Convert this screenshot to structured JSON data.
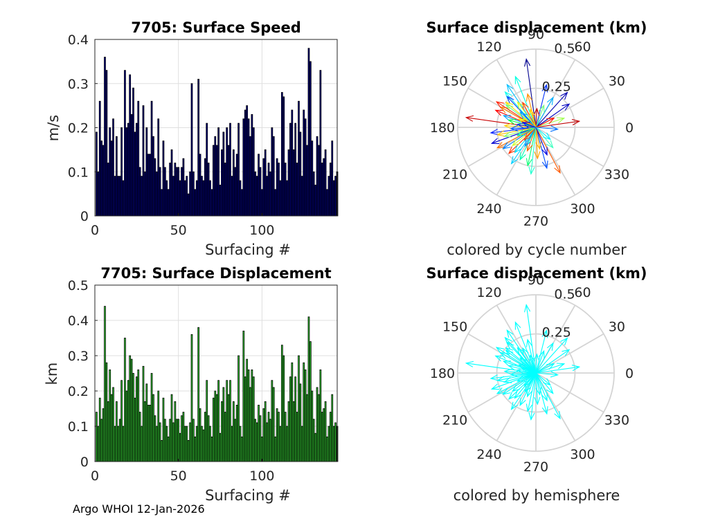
{
  "footer": "Argo WHOI 12-Jan-2026",
  "chart_data": [
    {
      "type": "bar",
      "title": "7705: Surface Speed",
      "xlabel": "Surfacing #",
      "ylabel": "m/s",
      "xlim": [
        0,
        145
      ],
      "ylim": [
        0,
        0.4
      ],
      "xticks": [
        "0",
        "50",
        "100"
      ],
      "yticks": [
        "0",
        "0.1",
        "0.2",
        "0.3",
        "0.4"
      ],
      "bar_color": "#000080",
      "edge_color": "#000000",
      "values": [
        0.19,
        0.1,
        0.26,
        0.17,
        0.16,
        0.36,
        0.33,
        0.12,
        0.2,
        0.17,
        0.22,
        0.09,
        0.18,
        0.09,
        0.09,
        0.2,
        0.08,
        0.33,
        0.2,
        0.21,
        0.32,
        0.23,
        0.29,
        0.19,
        0.21,
        0.26,
        0.11,
        0.09,
        0.25,
        0.1,
        0.2,
        0.14,
        0.14,
        0.26,
        0.18,
        0.13,
        0.1,
        0.22,
        0.11,
        0.06,
        0.17,
        0.11,
        0.08,
        0.06,
        0.12,
        0.15,
        0.09,
        0.12,
        0.11,
        0.11,
        0.08,
        0.11,
        0.13,
        0.08,
        0.09,
        0.05,
        0.1,
        0.3,
        0.1,
        0.06,
        0.08,
        0.31,
        0.14,
        0.09,
        0.08,
        0.13,
        0.21,
        0.12,
        0.08,
        0.06,
        0.16,
        0.18,
        0.16,
        0.2,
        0.07,
        0.15,
        0.19,
        0.12,
        0.2,
        0.16,
        0.21,
        0.09,
        0.15,
        0.11,
        0.14,
        0.21,
        0.08,
        0.06,
        0.22,
        0.24,
        0.25,
        0.22,
        0.18,
        0.23,
        0.2,
        0.1,
        0.09,
        0.14,
        0.11,
        0.06,
        0.13,
        0.15,
        0.09,
        0.12,
        0.1,
        0.2,
        0.18,
        0.06,
        0.13,
        0.12,
        0.08,
        0.28,
        0.27,
        0.12,
        0.08,
        0.15,
        0.21,
        0.24,
        0.15,
        0.21,
        0.12,
        0.26,
        0.19,
        0.09,
        0.24,
        0.22,
        0.16,
        0.38,
        0.35,
        0.17,
        0.1,
        0.07,
        0.18,
        0.16,
        0.33,
        0.12,
        0.13,
        0.15,
        0.06,
        0.09,
        0.12,
        0.17,
        0.08,
        0.09,
        0.1
      ]
    },
    {
      "type": "polar",
      "title": "Surface displacement (km)",
      "subtitle": "colored by cycle number",
      "r_max": 0.5,
      "r_ticks": [
        "0.25",
        "0.5"
      ],
      "angle_ticks": [
        "0",
        "30",
        "60",
        "90",
        "120",
        "150",
        "180",
        "210",
        "240",
        "270",
        "300",
        "330"
      ],
      "colormap": "jet",
      "arrows": [
        {
          "angle": 98,
          "r": 0.44,
          "color": "#00008f"
        },
        {
          "angle": 172,
          "r": 0.45,
          "color": "#c80000"
        },
        {
          "angle": 8,
          "r": 0.28,
          "color": "#c00000"
        },
        {
          "angle": 298,
          "r": 0.33,
          "color": "#ff5a00"
        },
        {
          "angle": 131,
          "r": 0.3,
          "color": "#10ffee"
        },
        {
          "angle": 133,
          "r": 0.27,
          "color": "#0040ff"
        },
        {
          "angle": 124,
          "r": 0.33,
          "color": "#00c0ff"
        },
        {
          "angle": 140,
          "r": 0.25,
          "color": "#ffe000"
        },
        {
          "angle": 150,
          "r": 0.26,
          "color": "#ff8000"
        },
        {
          "angle": 143,
          "r": 0.24,
          "color": "#60ff90"
        },
        {
          "angle": 157,
          "r": 0.28,
          "color": "#ff0000"
        },
        {
          "angle": 160,
          "r": 0.22,
          "color": "#00a0ff"
        },
        {
          "angle": 187,
          "r": 0.29,
          "color": "#0020ff"
        },
        {
          "angle": 191,
          "r": 0.25,
          "color": "#ffc000"
        },
        {
          "angle": 200,
          "r": 0.3,
          "color": "#0000d0"
        },
        {
          "angle": 208,
          "r": 0.28,
          "color": "#ff7000"
        },
        {
          "angle": 213,
          "r": 0.25,
          "color": "#0080ff"
        },
        {
          "angle": 224,
          "r": 0.24,
          "color": "#ff3000"
        },
        {
          "angle": 230,
          "r": 0.21,
          "color": "#00e0ff"
        },
        {
          "angle": 244,
          "r": 0.23,
          "color": "#00ffb0"
        },
        {
          "angle": 258,
          "r": 0.25,
          "color": "#00ff70"
        },
        {
          "angle": 273,
          "r": 0.2,
          "color": "#ffa000"
        },
        {
          "angle": 285,
          "r": 0.27,
          "color": "#0050ff"
        },
        {
          "angle": 310,
          "r": 0.17,
          "color": "#40ffc0"
        },
        {
          "angle": 18,
          "r": 0.19,
          "color": "#a0ff50"
        },
        {
          "angle": 35,
          "r": 0.26,
          "color": "#0000c0"
        },
        {
          "angle": 48,
          "r": 0.3,
          "color": "#0000b0"
        },
        {
          "angle": 60,
          "r": 0.22,
          "color": "#00b0ff"
        },
        {
          "angle": 76,
          "r": 0.28,
          "color": "#0030ff"
        },
        {
          "angle": 104,
          "r": 0.22,
          "color": "#ff9000"
        },
        {
          "angle": 112,
          "r": 0.35,
          "color": "#00ffe0"
        },
        {
          "angle": 118,
          "r": 0.18,
          "color": "#ff4000"
        },
        {
          "angle": 126,
          "r": 0.2,
          "color": "#e0ff20"
        },
        {
          "angle": 147,
          "r": 0.3,
          "color": "#ff2000"
        },
        {
          "angle": 165,
          "r": 0.18,
          "color": "#00ff40"
        },
        {
          "angle": 177,
          "r": 0.2,
          "color": "#ffd000"
        },
        {
          "angle": 183,
          "r": 0.16,
          "color": "#0060ff"
        },
        {
          "angle": 196,
          "r": 0.21,
          "color": "#80ff70"
        },
        {
          "angle": 218,
          "r": 0.19,
          "color": "#d0ff30"
        },
        {
          "angle": 236,
          "r": 0.28,
          "color": "#00d0ff"
        },
        {
          "angle": 250,
          "r": 0.16,
          "color": "#ff6000"
        },
        {
          "angle": 264,
          "r": 0.3,
          "color": "#20ffd0"
        },
        {
          "angle": 280,
          "r": 0.14,
          "color": "#ffb000"
        },
        {
          "angle": 292,
          "r": 0.19,
          "color": "#0000e0"
        },
        {
          "angle": 320,
          "r": 0.12,
          "color": "#00f0ff"
        },
        {
          "angle": 355,
          "r": 0.14,
          "color": "#0070ff"
        },
        {
          "angle": 27,
          "r": 0.13,
          "color": "#ff1000"
        },
        {
          "angle": 70,
          "r": 0.15,
          "color": "#70ff80"
        },
        {
          "angle": 87,
          "r": 0.12,
          "color": "#c00000"
        },
        {
          "angle": 136,
          "r": 0.14,
          "color": "#00a8ff"
        },
        {
          "angle": 154,
          "r": 0.12,
          "color": "#f8ff00"
        },
        {
          "angle": 171,
          "r": 0.12,
          "color": "#0040e0"
        },
        {
          "angle": 204,
          "r": 0.13,
          "color": "#00ffa0"
        },
        {
          "angle": 228,
          "r": 0.11,
          "color": "#ff5000"
        },
        {
          "angle": 240,
          "r": 0.14,
          "color": "#0090ff"
        },
        {
          "angle": 108,
          "r": 0.12,
          "color": "#ffd800"
        },
        {
          "angle": 160,
          "r": 0.09,
          "color": "#0000ff"
        }
      ]
    },
    {
      "type": "bar",
      "title": "7705: Surface Displacement",
      "xlabel": "Surfacing #",
      "ylabel": "km",
      "xlim": [
        0,
        145
      ],
      "ylim": [
        0,
        0.5
      ],
      "xticks": [
        "0",
        "50",
        "100"
      ],
      "yticks": [
        "0",
        "0.1",
        "0.2",
        "0.3",
        "0.4",
        "0.5"
      ],
      "bar_color": "#33cc33",
      "edge_color": "#000000",
      "values": [
        0.14,
        0.1,
        0.18,
        0.12,
        0.15,
        0.44,
        0.28,
        0.17,
        0.26,
        0.19,
        0.21,
        0.1,
        0.17,
        0.1,
        0.12,
        0.23,
        0.1,
        0.35,
        0.2,
        0.23,
        0.3,
        0.29,
        0.25,
        0.18,
        0.24,
        0.26,
        0.14,
        0.1,
        0.27,
        0.17,
        0.22,
        0.16,
        0.16,
        0.25,
        0.19,
        0.13,
        0.1,
        0.2,
        0.11,
        0.06,
        0.18,
        0.12,
        0.1,
        0.07,
        0.12,
        0.19,
        0.11,
        0.17,
        0.12,
        0.12,
        0.08,
        0.13,
        0.14,
        0.1,
        0.1,
        0.06,
        0.11,
        0.36,
        0.12,
        0.07,
        0.1,
        0.38,
        0.15,
        0.1,
        0.09,
        0.14,
        0.23,
        0.13,
        0.1,
        0.07,
        0.18,
        0.2,
        0.19,
        0.23,
        0.08,
        0.17,
        0.21,
        0.14,
        0.23,
        0.19,
        0.23,
        0.1,
        0.17,
        0.12,
        0.16,
        0.3,
        0.1,
        0.07,
        0.37,
        0.24,
        0.29,
        0.26,
        0.21,
        0.26,
        0.24,
        0.12,
        0.11,
        0.16,
        0.13,
        0.07,
        0.15,
        0.17,
        0.11,
        0.14,
        0.12,
        0.23,
        0.21,
        0.07,
        0.15,
        0.14,
        0.1,
        0.33,
        0.3,
        0.14,
        0.1,
        0.17,
        0.24,
        0.28,
        0.17,
        0.24,
        0.14,
        0.3,
        0.22,
        0.1,
        0.28,
        0.26,
        0.19,
        0.41,
        0.34,
        0.2,
        0.12,
        0.08,
        0.21,
        0.19,
        0.26,
        0.14,
        0.15,
        0.17,
        0.07,
        0.1,
        0.14,
        0.19,
        0.1,
        0.11,
        0.1
      ]
    },
    {
      "type": "polar",
      "title": "Surface displacement (km)",
      "subtitle": "colored by hemisphere",
      "r_max": 0.5,
      "r_ticks": [
        "0.25",
        "0.5"
      ],
      "angle_ticks": [
        "0",
        "30",
        "60",
        "90",
        "120",
        "150",
        "180",
        "210",
        "240",
        "270",
        "300",
        "330"
      ],
      "arrow_color": "#00ffff",
      "arrows": [
        {
          "angle": 98,
          "r": 0.44
        },
        {
          "angle": 172,
          "r": 0.45
        },
        {
          "angle": 8,
          "r": 0.28
        },
        {
          "angle": 298,
          "r": 0.33
        },
        {
          "angle": 131,
          "r": 0.3
        },
        {
          "angle": 133,
          "r": 0.27
        },
        {
          "angle": 124,
          "r": 0.33
        },
        {
          "angle": 140,
          "r": 0.25
        },
        {
          "angle": 150,
          "r": 0.26
        },
        {
          "angle": 143,
          "r": 0.24
        },
        {
          "angle": 157,
          "r": 0.28
        },
        {
          "angle": 160,
          "r": 0.22
        },
        {
          "angle": 187,
          "r": 0.29
        },
        {
          "angle": 191,
          "r": 0.25
        },
        {
          "angle": 200,
          "r": 0.3
        },
        {
          "angle": 208,
          "r": 0.28
        },
        {
          "angle": 213,
          "r": 0.25
        },
        {
          "angle": 224,
          "r": 0.24
        },
        {
          "angle": 230,
          "r": 0.21
        },
        {
          "angle": 244,
          "r": 0.23
        },
        {
          "angle": 258,
          "r": 0.25
        },
        {
          "angle": 273,
          "r": 0.2
        },
        {
          "angle": 285,
          "r": 0.27
        },
        {
          "angle": 310,
          "r": 0.17
        },
        {
          "angle": 18,
          "r": 0.19
        },
        {
          "angle": 35,
          "r": 0.26
        },
        {
          "angle": 48,
          "r": 0.3
        },
        {
          "angle": 60,
          "r": 0.22
        },
        {
          "angle": 76,
          "r": 0.28
        },
        {
          "angle": 104,
          "r": 0.22
        },
        {
          "angle": 112,
          "r": 0.35
        },
        {
          "angle": 118,
          "r": 0.18
        },
        {
          "angle": 126,
          "r": 0.2
        },
        {
          "angle": 147,
          "r": 0.3
        },
        {
          "angle": 165,
          "r": 0.18
        },
        {
          "angle": 177,
          "r": 0.2
        },
        {
          "angle": 183,
          "r": 0.16
        },
        {
          "angle": 196,
          "r": 0.21
        },
        {
          "angle": 218,
          "r": 0.19
        },
        {
          "angle": 236,
          "r": 0.28
        },
        {
          "angle": 250,
          "r": 0.16
        },
        {
          "angle": 264,
          "r": 0.3
        },
        {
          "angle": 280,
          "r": 0.14
        },
        {
          "angle": 292,
          "r": 0.19
        },
        {
          "angle": 320,
          "r": 0.12
        },
        {
          "angle": 355,
          "r": 0.14
        },
        {
          "angle": 27,
          "r": 0.13
        },
        {
          "angle": 70,
          "r": 0.15
        },
        {
          "angle": 87,
          "r": 0.12
        },
        {
          "angle": 136,
          "r": 0.14
        },
        {
          "angle": 154,
          "r": 0.12
        },
        {
          "angle": 171,
          "r": 0.12
        },
        {
          "angle": 204,
          "r": 0.13
        },
        {
          "angle": 228,
          "r": 0.11
        },
        {
          "angle": 240,
          "r": 0.14
        },
        {
          "angle": 108,
          "r": 0.12
        },
        {
          "angle": 160,
          "r": 0.09
        }
      ]
    }
  ]
}
